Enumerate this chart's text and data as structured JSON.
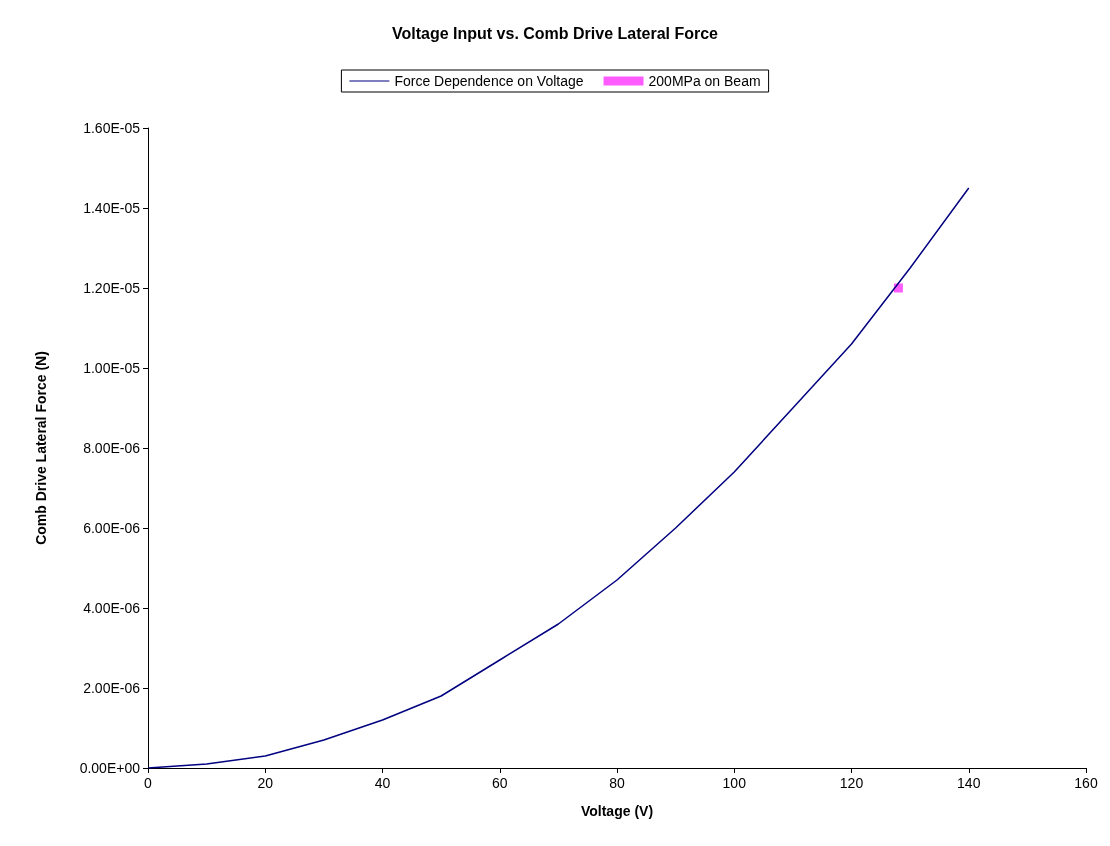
{
  "chart_data": {
    "type": "line",
    "title": "Voltage Input vs. Comb Drive Lateral Force",
    "xlabel": "Voltage (V)",
    "ylabel": "Comb Drive Lateral Force (N)",
    "series": [
      {
        "name": "Force Dependence on Voltage",
        "color": "#000080",
        "marker": "none",
        "x": [
          0,
          10,
          20,
          30,
          40,
          50,
          60,
          70,
          80,
          90,
          100,
          110,
          120,
          130,
          140
        ],
        "values": [
          0,
          1e-07,
          3e-07,
          7e-07,
          1.2e-06,
          1.8e-06,
          2.7e-06,
          3.6e-06,
          4.7e-06,
          6e-06,
          7.4e-06,
          9e-06,
          1.06e-05,
          1.25e-05,
          1.45e-05
        ]
      },
      {
        "name": "200MPa on Beam",
        "type": "scatter",
        "color": "#ff33ff",
        "marker": "square",
        "x": [
          128
        ],
        "values": [
          1.2e-05
        ]
      }
    ],
    "xlim": [
      0,
      160
    ],
    "xticks": [
      0,
      20,
      40,
      60,
      80,
      100,
      120,
      140,
      160
    ],
    "ylim": [
      0,
      1.6e-05
    ],
    "yticks": [
      {
        "value": 0,
        "label": "0.00E+00"
      },
      {
        "value": 2e-06,
        "label": "2.00E-06"
      },
      {
        "value": 4e-06,
        "label": "4.00E-06"
      },
      {
        "value": 6e-06,
        "label": "6.00E-06"
      },
      {
        "value": 8e-06,
        "label": "8.00E-06"
      },
      {
        "value": 1e-05,
        "label": "1.00E-05"
      },
      {
        "value": 1.2e-05,
        "label": "1.20E-05"
      },
      {
        "value": 1.4e-05,
        "label": "1.40E-05"
      },
      {
        "value": 1.6e-05,
        "label": "1.60E-05"
      }
    ],
    "grid": false,
    "legend": "top"
  }
}
